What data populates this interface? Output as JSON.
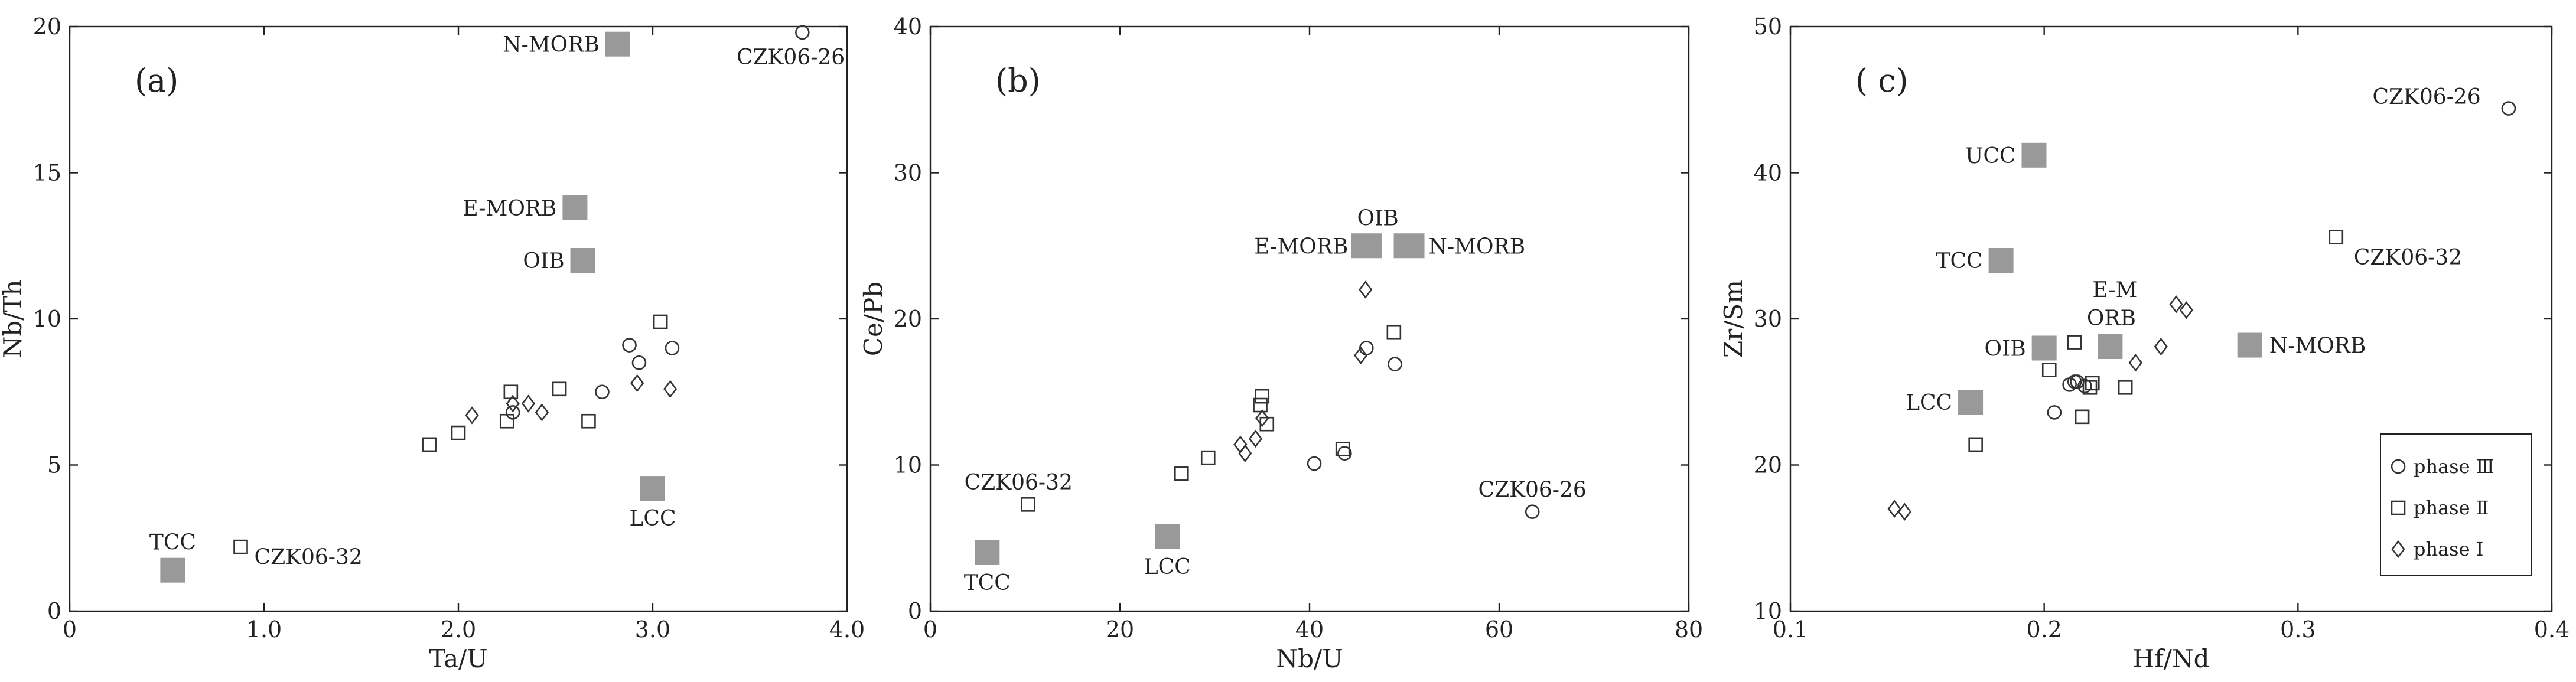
{
  "charts": [
    {
      "type": "scatter",
      "panel_label": "(a)",
      "xlabel": "Ta/U",
      "ylabel": "Nb/Th",
      "xlim": [
        0,
        4.0
      ],
      "ylim": [
        0,
        20
      ],
      "xticks": [
        0,
        1.0,
        2.0,
        3.0,
        4.0
      ],
      "xtick_labels": [
        "0",
        "1.0",
        "2.0",
        "3.0",
        "4.0"
      ],
      "yticks": [
        0,
        5,
        10,
        15,
        20
      ],
      "ytick_labels": [
        "0",
        "5",
        "10",
        "15",
        "20"
      ],
      "reference": [
        {
          "label": "N-MORB",
          "x": 2.82,
          "y": 19.4,
          "side": "left"
        },
        {
          "label": "E-MORB",
          "x": 2.6,
          "y": 13.8,
          "side": "left"
        },
        {
          "label": "OIB",
          "x": 2.64,
          "y": 12.0,
          "side": "left"
        },
        {
          "label": "LCC",
          "x": 3.0,
          "y": 4.2,
          "side": "below"
        },
        {
          "label": "TCC",
          "x": 0.53,
          "y": 1.4,
          "side": "above"
        }
      ],
      "phase3": [
        [
          2.74,
          7.5
        ],
        [
          2.88,
          9.1
        ],
        [
          2.93,
          8.5
        ],
        [
          3.1,
          9.0
        ],
        [
          2.28,
          6.8
        ],
        [
          3.77,
          19.8
        ]
      ],
      "phase2": [
        [
          1.85,
          5.7
        ],
        [
          2.0,
          6.1
        ],
        [
          2.25,
          6.5
        ],
        [
          2.27,
          7.5
        ],
        [
          2.52,
          7.6
        ],
        [
          2.67,
          6.5
        ],
        [
          3.04,
          9.9
        ],
        [
          0.88,
          2.2
        ]
      ],
      "phase1": [
        [
          2.07,
          6.7
        ],
        [
          2.28,
          7.1
        ],
        [
          2.36,
          7.1
        ],
        [
          2.43,
          6.8
        ],
        [
          2.92,
          7.8
        ],
        [
          3.09,
          7.6
        ]
      ],
      "annotations": [
        {
          "text": "CZK06-26",
          "x": 3.77,
          "y": 19.8,
          "dx": -0.06,
          "dy": -0.85,
          "anchor": "middle"
        },
        {
          "text": "CZK06-32",
          "x": 0.88,
          "y": 2.2,
          "dx": 0.07,
          "dy": -0.35,
          "anchor": "start"
        }
      ]
    },
    {
      "type": "scatter",
      "panel_label": "(b)",
      "xlabel": "Nb/U",
      "ylabel": "Ce/Pb",
      "xlim": [
        0,
        80
      ],
      "ylim": [
        0,
        40
      ],
      "xticks": [
        0,
        20,
        40,
        60,
        80
      ],
      "xtick_labels": [
        "0",
        "20",
        "40",
        "60",
        "80"
      ],
      "yticks": [
        0,
        10,
        20,
        30,
        40
      ],
      "ytick_labels": [
        "0",
        "10",
        "20",
        "30",
        "40"
      ],
      "reference": [
        {
          "label": "TCC",
          "x": 6.0,
          "y": 4.0,
          "side": "below"
        },
        {
          "label": "LCC",
          "x": 25.0,
          "y": 5.1,
          "side": "below"
        },
        {
          "label": "E-MORB",
          "x": 46.0,
          "y": 25.0,
          "side": "left"
        },
        {
          "label": "N-MORB",
          "x": 50.5,
          "y": 25.0,
          "side": "right"
        },
        {
          "label": "OIB",
          "x": 47.2,
          "y": 25.0,
          "side": "above"
        }
      ],
      "phase3": [
        [
          40.5,
          10.1
        ],
        [
          43.7,
          10.8
        ],
        [
          46.0,
          18.0
        ],
        [
          49.0,
          16.9
        ],
        [
          63.5,
          6.8
        ]
      ],
      "phase2": [
        [
          26.5,
          9.4
        ],
        [
          29.3,
          10.5
        ],
        [
          34.8,
          14.1
        ],
        [
          35.0,
          14.7
        ],
        [
          35.5,
          12.8
        ],
        [
          43.5,
          11.1
        ],
        [
          48.9,
          19.1
        ],
        [
          10.3,
          7.3
        ]
      ],
      "phase1": [
        [
          32.7,
          11.4
        ],
        [
          33.2,
          10.8
        ],
        [
          34.3,
          11.8
        ],
        [
          35.0,
          13.2
        ],
        [
          45.4,
          17.5
        ],
        [
          45.9,
          22.0
        ]
      ],
      "annotations": [
        {
          "text": "CZK06-32",
          "x": 10.3,
          "y": 7.3,
          "dx": -1.0,
          "dy": 1.5,
          "anchor": "middle"
        },
        {
          "text": "CZK06-26",
          "x": 63.5,
          "y": 6.8,
          "dx": 0.0,
          "dy": 1.5,
          "anchor": "middle"
        }
      ]
    },
    {
      "type": "scatter",
      "panel_label": "( c)",
      "xlabel": "Hf/Nd",
      "ylabel": "Zr/Sm",
      "xlim": [
        0.1,
        0.4
      ],
      "ylim": [
        10,
        50
      ],
      "xticks": [
        0.1,
        0.2,
        0.3,
        0.4
      ],
      "xtick_labels": [
        "0.1",
        "0.2",
        "0.3",
        "0.4"
      ],
      "yticks": [
        10,
        20,
        30,
        40,
        50
      ],
      "ytick_labels": [
        "10",
        "20",
        "30",
        "40",
        "50"
      ],
      "reference": [
        {
          "label": "UCC",
          "x": 0.196,
          "y": 41.2,
          "side": "left"
        },
        {
          "label": "TCC",
          "x": 0.183,
          "y": 34.0,
          "side": "left"
        },
        {
          "label": "OIB",
          "x": 0.2,
          "y": 28.0,
          "side": "left"
        },
        {
          "label": "LCC",
          "x": 0.171,
          "y": 24.3,
          "side": "left"
        },
        {
          "label": "N-MORB",
          "x": 0.281,
          "y": 28.2,
          "side": "right"
        }
      ],
      "emorb": {
        "x": 0.226,
        "y": 28.1,
        "line1": "E-M",
        "line2": "ORB"
      },
      "phase3": [
        [
          0.204,
          23.6
        ],
        [
          0.21,
          25.5
        ],
        [
          0.212,
          25.7
        ],
        [
          0.213,
          25.7
        ],
        [
          0.216,
          25.4
        ],
        [
          0.383,
          44.4
        ]
      ],
      "phase2": [
        [
          0.173,
          21.4
        ],
        [
          0.202,
          26.5
        ],
        [
          0.212,
          28.4
        ],
        [
          0.215,
          23.3
        ],
        [
          0.218,
          25.3
        ],
        [
          0.219,
          25.6
        ],
        [
          0.232,
          25.3
        ],
        [
          0.315,
          35.6
        ]
      ],
      "phase1": [
        [
          0.141,
          17.0
        ],
        [
          0.145,
          16.8
        ],
        [
          0.236,
          27.0
        ],
        [
          0.246,
          28.1
        ],
        [
          0.252,
          31.0
        ],
        [
          0.256,
          30.6
        ]
      ],
      "annotations": [
        {
          "text": "CZK06-26",
          "x": 0.383,
          "y": 44.4,
          "dx": -0.011,
          "dy": 0.8,
          "anchor": "end"
        },
        {
          "text": "CZK06-32",
          "x": 0.315,
          "y": 35.6,
          "dx": 0.007,
          "dy": -1.4,
          "anchor": "start"
        }
      ],
      "legend": {
        "items": [
          "phase Ⅲ",
          "phase Ⅱ",
          "phase Ⅰ"
        ],
        "placement": "lower-right"
      }
    }
  ]
}
